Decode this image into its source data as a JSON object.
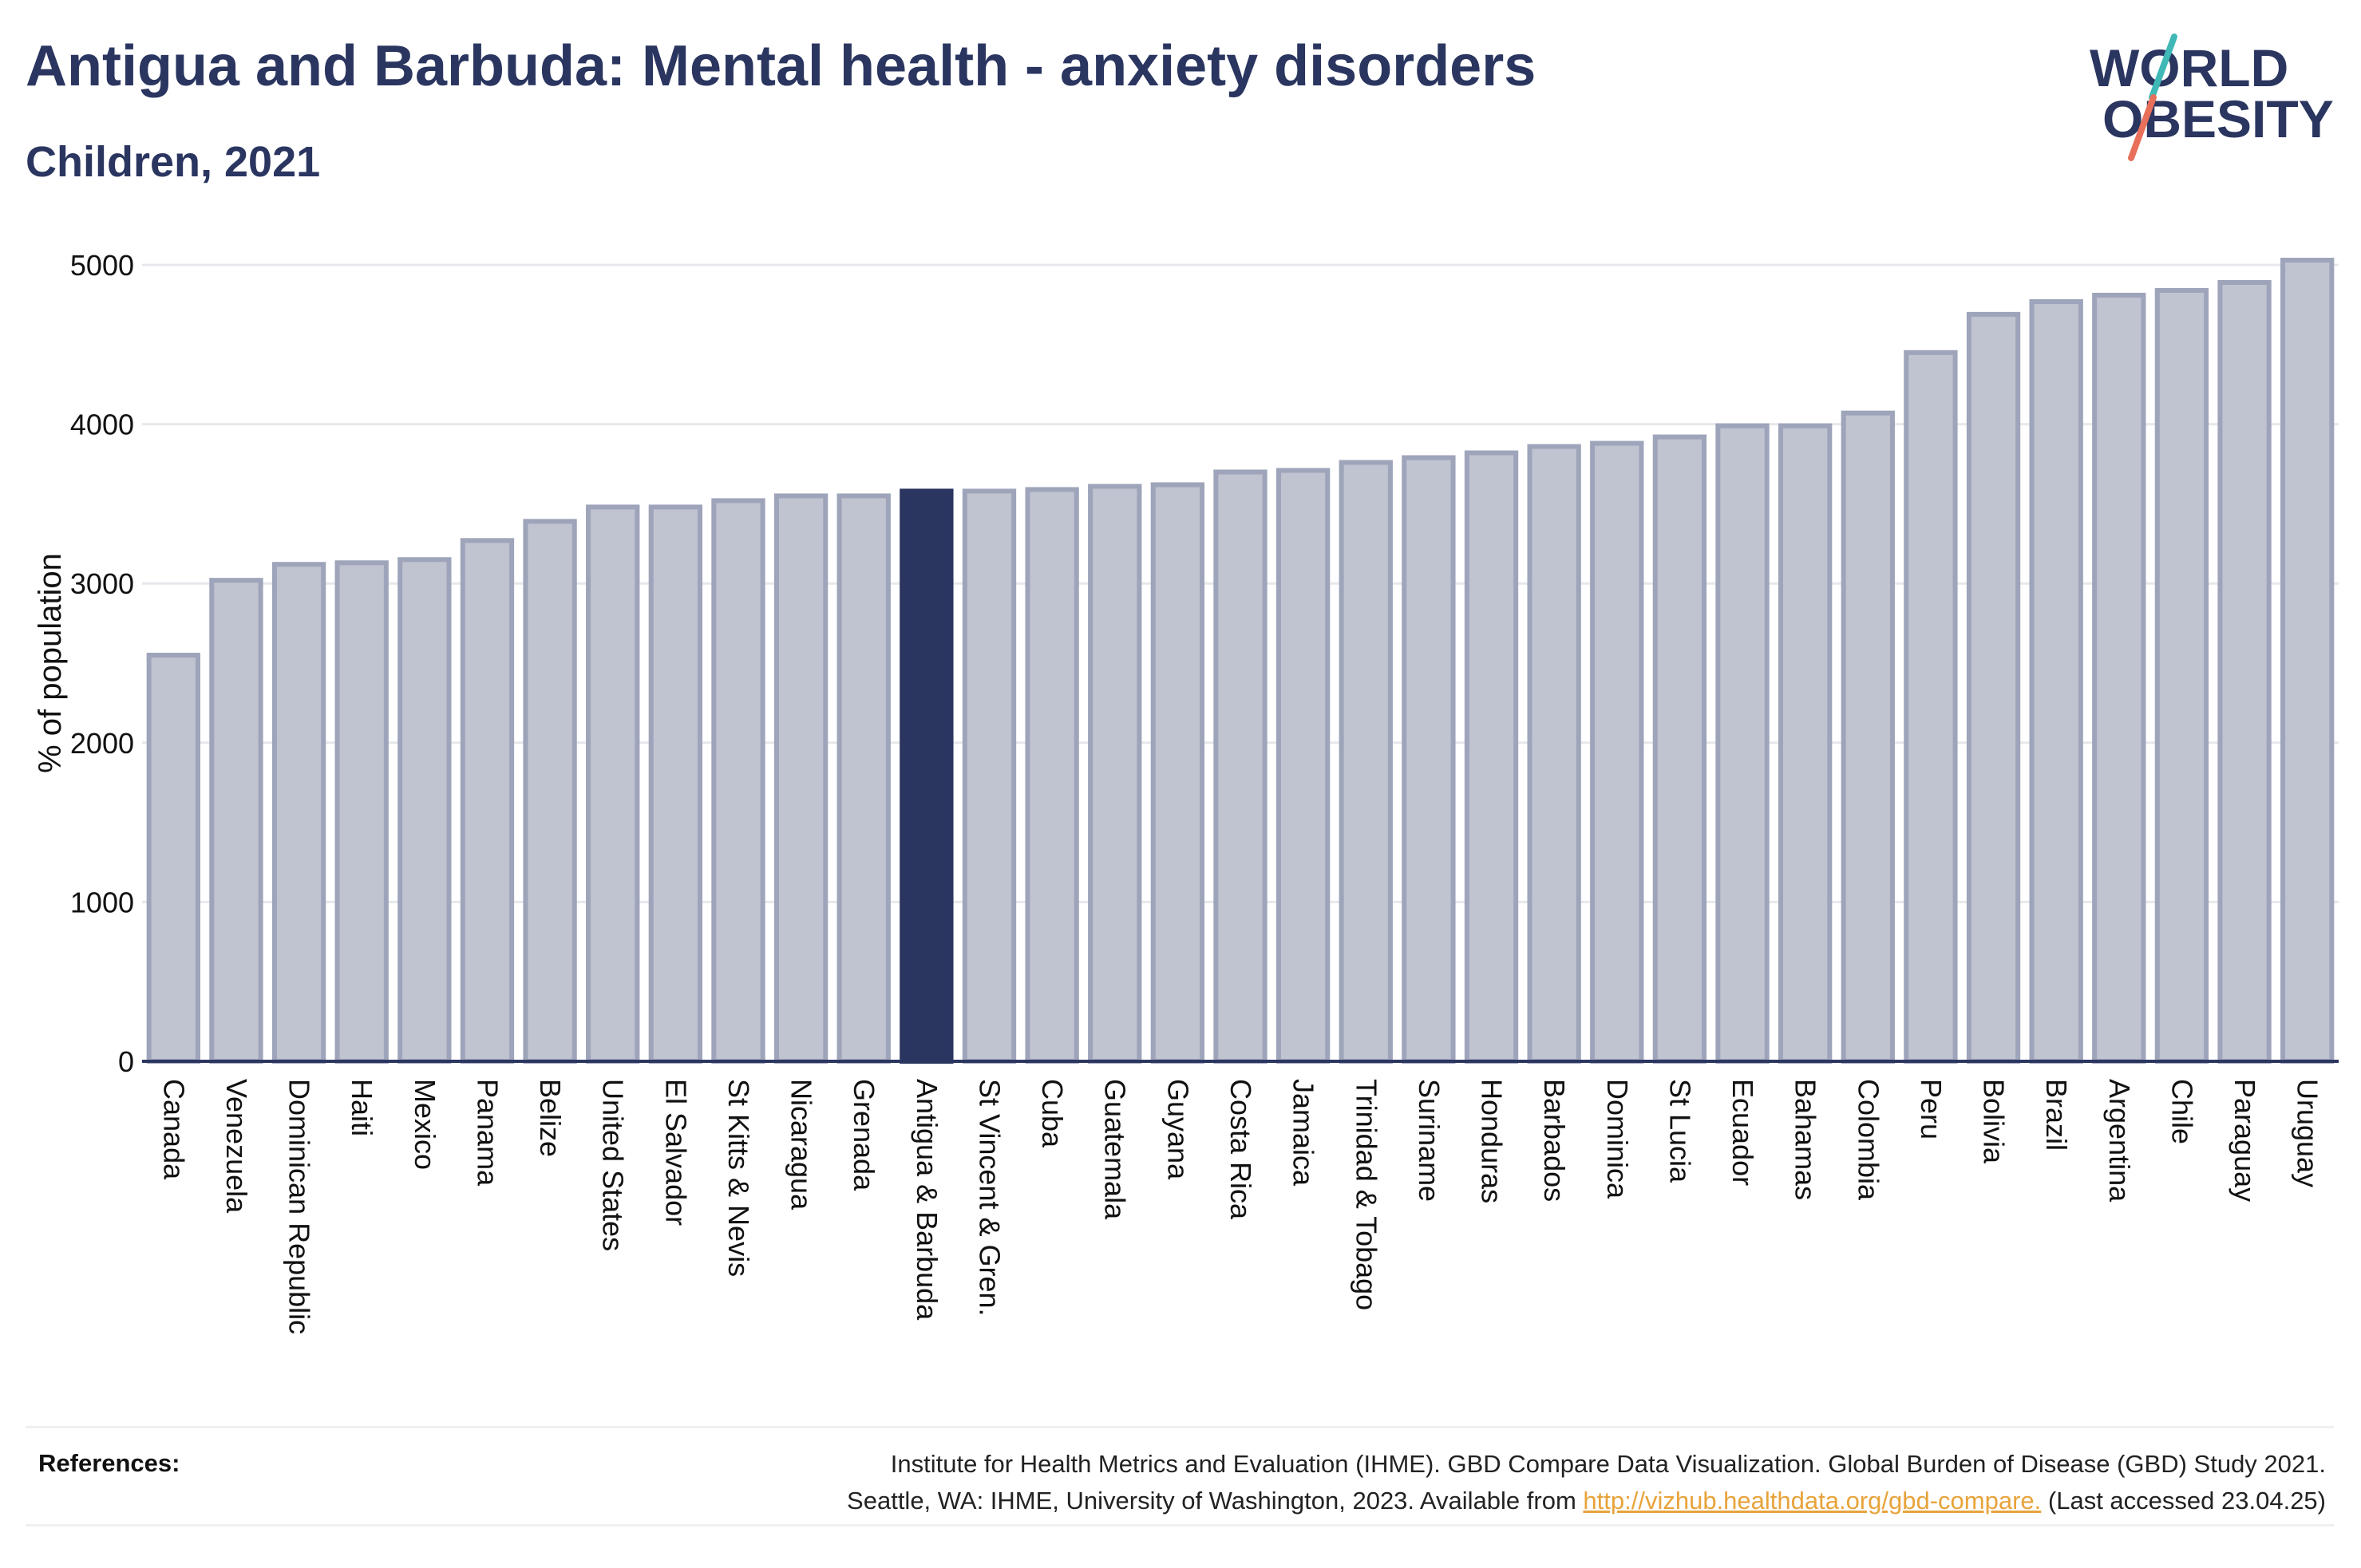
{
  "title": "Antigua and Barbuda: Mental health - anxiety disorders",
  "subtitle": "Children, 2021",
  "logo": {
    "line1": "WORLD",
    "line2": "OBESITY"
  },
  "colors": {
    "bar": "#c0c3d0",
    "bar_border": "#9ea4ba",
    "highlight": "#2a3560",
    "text": "#2a3560",
    "grid": "#e6e8ec",
    "link": "#e8a33b"
  },
  "chart_data": {
    "type": "bar",
    "title": "Antigua and Barbuda: Mental health - anxiety disorders",
    "subtitle": "Children, 2021",
    "ylabel": "% of population",
    "xlabel": "",
    "ylim": [
      0,
      5000
    ],
    "yticks": [
      0,
      1000,
      2000,
      3000,
      4000,
      5000
    ],
    "grid": true,
    "highlight": "Antigua & Barbuda",
    "categories": [
      "Canada",
      "Venezuela",
      "Dominican Republic",
      "Haiti",
      "Mexico",
      "Panama",
      "Belize",
      "United States",
      "El Salvador",
      "St Kitts & Nevis",
      "Nicaragua",
      "Grenada",
      "Antigua & Barbuda",
      "St Vincent & Gren.",
      "Cuba",
      "Guatemala",
      "Guyana",
      "Costa Rica",
      "Jamaica",
      "Trinidad & Tobago",
      "Suriname",
      "Honduras",
      "Barbados",
      "Dominica",
      "St Lucia",
      "Ecuador",
      "Bahamas",
      "Colombia",
      "Peru",
      "Bolivia",
      "Brazil",
      "Argentina",
      "Chile",
      "Paraguay",
      "Uruguay"
    ],
    "values": [
      2550,
      3020,
      3120,
      3130,
      3150,
      3270,
      3390,
      3480,
      3480,
      3520,
      3550,
      3550,
      3580,
      3580,
      3590,
      3610,
      3620,
      3700,
      3710,
      3760,
      3790,
      3820,
      3860,
      3880,
      3920,
      3990,
      3990,
      4070,
      4450,
      4690,
      4770,
      4810,
      4840,
      4890,
      5030
    ]
  },
  "references": {
    "label": "References:",
    "line1": "Institute for Health Metrics and Evaluation (IHME). GBD Compare Data Visualization. Global Burden of Disease (GBD) Study 2021.",
    "line2_prefix": "Seattle, WA: IHME, University of Washington, 2023. Available from ",
    "link": "http://vizhub.healthdata.org/gbd-compare.",
    "line2_suffix": " (Last accessed 23.04.25)"
  }
}
